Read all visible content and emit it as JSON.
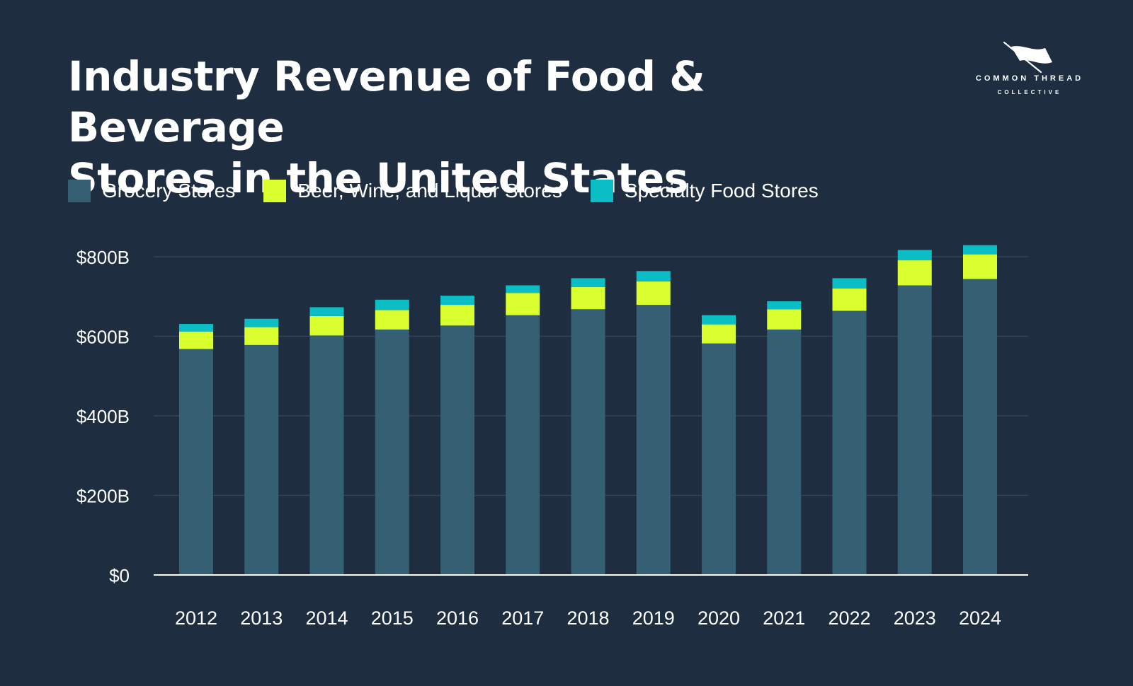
{
  "header": {
    "title_line1": "Industry Revenue of Food & Beverage",
    "title_line2": "Stores in the United States"
  },
  "brand": {
    "name": "COMMON THREAD",
    "sub": "COLLECTIVE"
  },
  "colors": {
    "background": "#1e2e40",
    "grocery": "#355f72",
    "beer_wine_liquor": "#d9ff2e",
    "specialty": "#0bbec6",
    "grid": "#34475a",
    "axis": "#ffffff",
    "text": "#ffffff"
  },
  "chart_data": {
    "type": "bar",
    "stacked": true,
    "title": "Industry Revenue of Food & Beverage Stores in the United States",
    "categories": [
      "2012",
      "2013",
      "2014",
      "2015",
      "2016",
      "2017",
      "2018",
      "2019",
      "2020",
      "2021",
      "2022",
      "2023",
      "2024"
    ],
    "series": [
      {
        "name": "Grocery Stores",
        "color": "#355f72",
        "values": [
          568,
          578,
          602,
          617,
          627,
          653,
          668,
          679,
          582,
          617,
          664,
          728,
          744
        ]
      },
      {
        "name": "Beer, Wine, and Liquor Stores",
        "color": "#d9ff2e",
        "values": [
          44,
          45,
          49,
          49,
          52,
          56,
          56,
          59,
          48,
          51,
          56,
          63,
          62
        ]
      },
      {
        "name": "Specialty Food Stores",
        "color": "#0bbec6",
        "values": [
          19,
          21,
          22,
          26,
          23,
          19,
          22,
          26,
          23,
          20,
          26,
          26,
          23
        ]
      }
    ],
    "yticks": [
      {
        "value": 0,
        "label": "$0"
      },
      {
        "value": 200,
        "label": "$200B"
      },
      {
        "value": 400,
        "label": "$400B"
      },
      {
        "value": 600,
        "label": "$600B"
      },
      {
        "value": 800,
        "label": "$800B"
      }
    ],
    "ylim": [
      0,
      800
    ],
    "xlabel": "",
    "ylabel": "",
    "grid": true,
    "legend": "top-left"
  }
}
